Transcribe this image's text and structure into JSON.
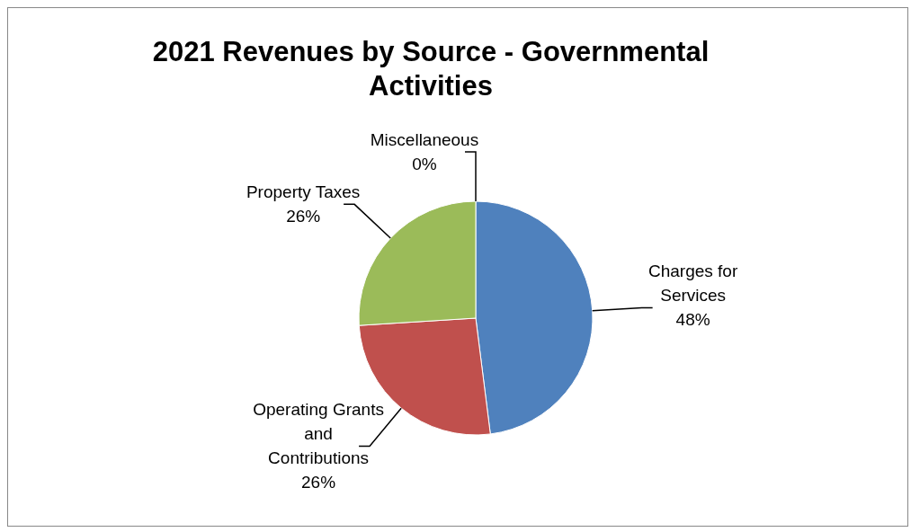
{
  "chart_data": {
    "type": "pie",
    "title": "2021 Revenues by Source - Governmental Activities",
    "categories": [
      "Charges for Services",
      "Operating Grants and Contributions",
      "Property Taxes",
      "Miscellaneous"
    ],
    "values": [
      48,
      26,
      26,
      0
    ],
    "colors": [
      "#4f81bd",
      "#c0504d",
      "#9bbb59",
      "#8064a2"
    ],
    "value_labels": [
      "48%",
      "26%",
      "26%",
      "0%"
    ],
    "legend": false
  }
}
